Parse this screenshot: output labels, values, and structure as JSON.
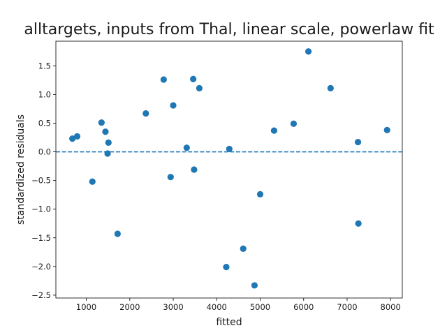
{
  "chart_data": {
    "type": "scatter",
    "title": "alltargets, inputs from Thal, linear scale, powerlaw fit",
    "xlabel": "fitted",
    "ylabel": "standardized residuals",
    "xlim": [
      300,
      8270
    ],
    "ylim": [
      -2.55,
      1.93
    ],
    "xticks": [
      1000,
      2000,
      3000,
      4000,
      5000,
      6000,
      7000,
      8000
    ],
    "yticks": [
      -2.5,
      -2.0,
      -1.5,
      -1.0,
      -0.5,
      0.0,
      0.5,
      1.0,
      1.5
    ],
    "ytick_labels": [
      "−2.5",
      "−2.0",
      "−1.5",
      "−1.0",
      "−0.5",
      "0.0",
      "0.5",
      "1.0",
      "1.5"
    ],
    "grid": false,
    "reference_line": {
      "y": 0.0,
      "style": "dashed"
    },
    "colors": {
      "points": "#1f77b4",
      "reference_line": "#1f77b4",
      "axes": "#1a1a1a"
    },
    "points": [
      {
        "x": 680,
        "y": 0.23
      },
      {
        "x": 790,
        "y": 0.27
      },
      {
        "x": 1140,
        "y": -0.52
      },
      {
        "x": 1350,
        "y": 0.51
      },
      {
        "x": 1440,
        "y": 0.35
      },
      {
        "x": 1490,
        "y": -0.03
      },
      {
        "x": 1510,
        "y": 0.16
      },
      {
        "x": 1720,
        "y": -1.43
      },
      {
        "x": 2370,
        "y": 0.67
      },
      {
        "x": 2780,
        "y": 1.26
      },
      {
        "x": 2940,
        "y": -0.44
      },
      {
        "x": 3000,
        "y": 0.81
      },
      {
        "x": 3310,
        "y": 0.07
      },
      {
        "x": 3460,
        "y": 1.27
      },
      {
        "x": 3480,
        "y": -0.31
      },
      {
        "x": 3600,
        "y": 1.11
      },
      {
        "x": 4220,
        "y": -2.01
      },
      {
        "x": 4290,
        "y": 0.05
      },
      {
        "x": 4610,
        "y": -1.69
      },
      {
        "x": 4870,
        "y": -2.33
      },
      {
        "x": 5000,
        "y": -0.74
      },
      {
        "x": 5320,
        "y": 0.37
      },
      {
        "x": 5770,
        "y": 0.49
      },
      {
        "x": 6110,
        "y": 1.75
      },
      {
        "x": 6620,
        "y": 1.11
      },
      {
        "x": 7250,
        "y": 0.17
      },
      {
        "x": 7260,
        "y": -1.25
      },
      {
        "x": 7920,
        "y": 0.38
      }
    ]
  }
}
